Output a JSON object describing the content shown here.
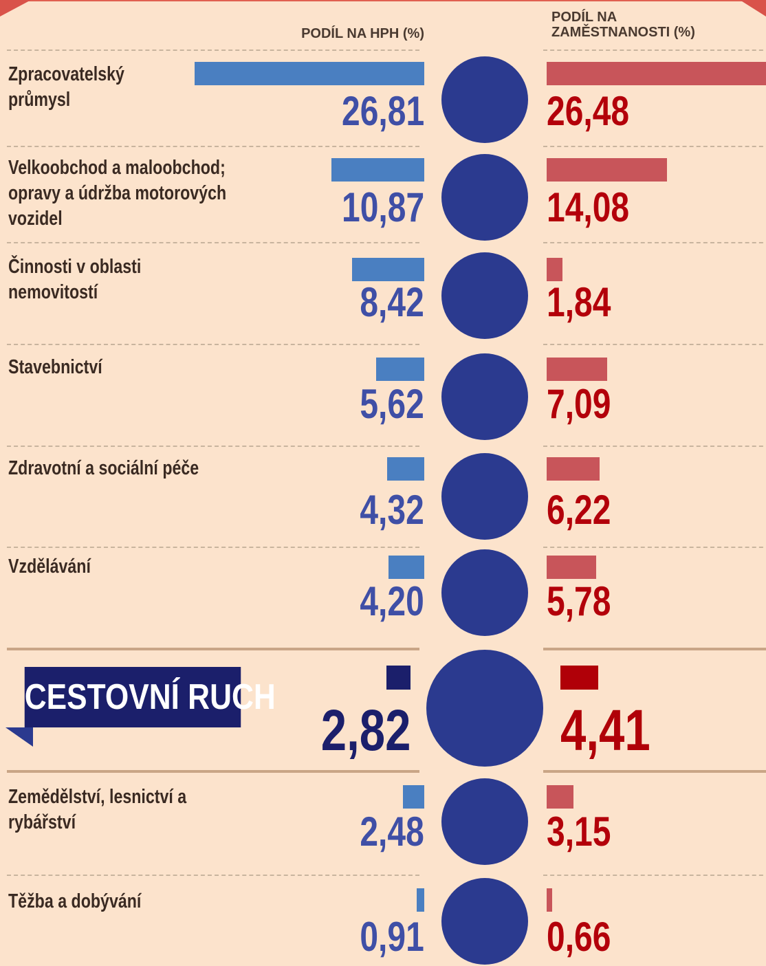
{
  "chart_data": {
    "type": "butterfly",
    "categories": [
      "Zpracovatelský průmysl",
      "Velkoobchod a maloobchod; opravy a údržba motorových vozidel",
      "Činnosti v oblasti nemovitostí",
      "Stavebnictví",
      "Zdravotní a sociální péče",
      "Vzdělávání",
      "CESTOVNÍ RUCH",
      "Zemědělství, lesnictví a rybářství",
      "Těžba a dobývání"
    ],
    "series": [
      {
        "name": "PODÍL NA HPH (%)",
        "color": "#4a7fc1",
        "values": [
          26.81,
          10.87,
          8.42,
          5.62,
          4.32,
          4.2,
          2.82,
          2.48,
          0.91
        ],
        "value_labels": [
          "26,81",
          "10,87",
          "8,42",
          "5,62",
          "4,32",
          "4,20",
          "2,82",
          "2,48",
          "0,91"
        ]
      },
      {
        "name": "PODÍL NA ZAMĚSTNANOSTI (%)",
        "color": "#c8555a",
        "values": [
          26.48,
          14.08,
          1.84,
          7.09,
          6.22,
          5.78,
          4.41,
          3.15,
          0.66
        ],
        "value_labels": [
          "26,48",
          "14,08",
          "1,84",
          "7,09",
          "6,22",
          "5,78",
          "4,41",
          "3,15",
          "0,66"
        ]
      }
    ],
    "highlight": 6,
    "highlight_colors": [
      "#1b1f6b",
      "#b00008"
    ]
  }
}
